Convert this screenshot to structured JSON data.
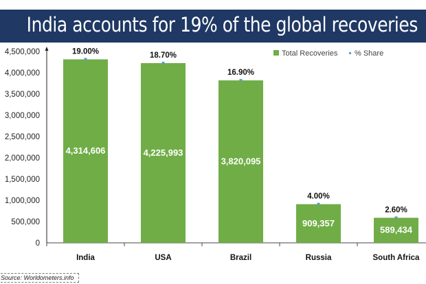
{
  "chart_data": {
    "type": "bar",
    "title": "India accounts for 19% of the global recoveries",
    "categories": [
      "India",
      "USA",
      "Brazil",
      "Russia",
      "South Africa"
    ],
    "series": [
      {
        "name": "Total Recoveries",
        "values": [
          4314606,
          4225993,
          3820095,
          909357,
          589434
        ],
        "value_labels": [
          "4,314,606",
          "4,225,993",
          "3,820,095",
          "909,357",
          "589,434"
        ],
        "color": "#70ad47"
      },
      {
        "name": "% Share",
        "values": [
          19.0,
          18.7,
          16.9,
          4.0,
          2.6
        ],
        "value_labels": [
          "19.00%",
          "18.70%",
          "16.90%",
          "4.00%",
          "2.60%"
        ],
        "color": "#5b9bd5"
      }
    ],
    "yticks": [
      0,
      500000,
      1000000,
      1500000,
      2000000,
      2500000,
      3000000,
      3500000,
      4000000,
      4500000
    ],
    "ytick_labels": [
      "0",
      "500,000",
      "1,000,000",
      "1,500,000",
      "2,000,000",
      "2,500,000",
      "3,000,000",
      "3,500,000",
      "4,000,000",
      "4,500,000"
    ],
    "ylim": [
      0,
      4500000
    ],
    "xlabel": "",
    "ylabel": "",
    "grid": false,
    "legend_position": "top-right"
  },
  "source": "Source: Worldometers.info",
  "colors": {
    "banner": "#1f3864"
  }
}
